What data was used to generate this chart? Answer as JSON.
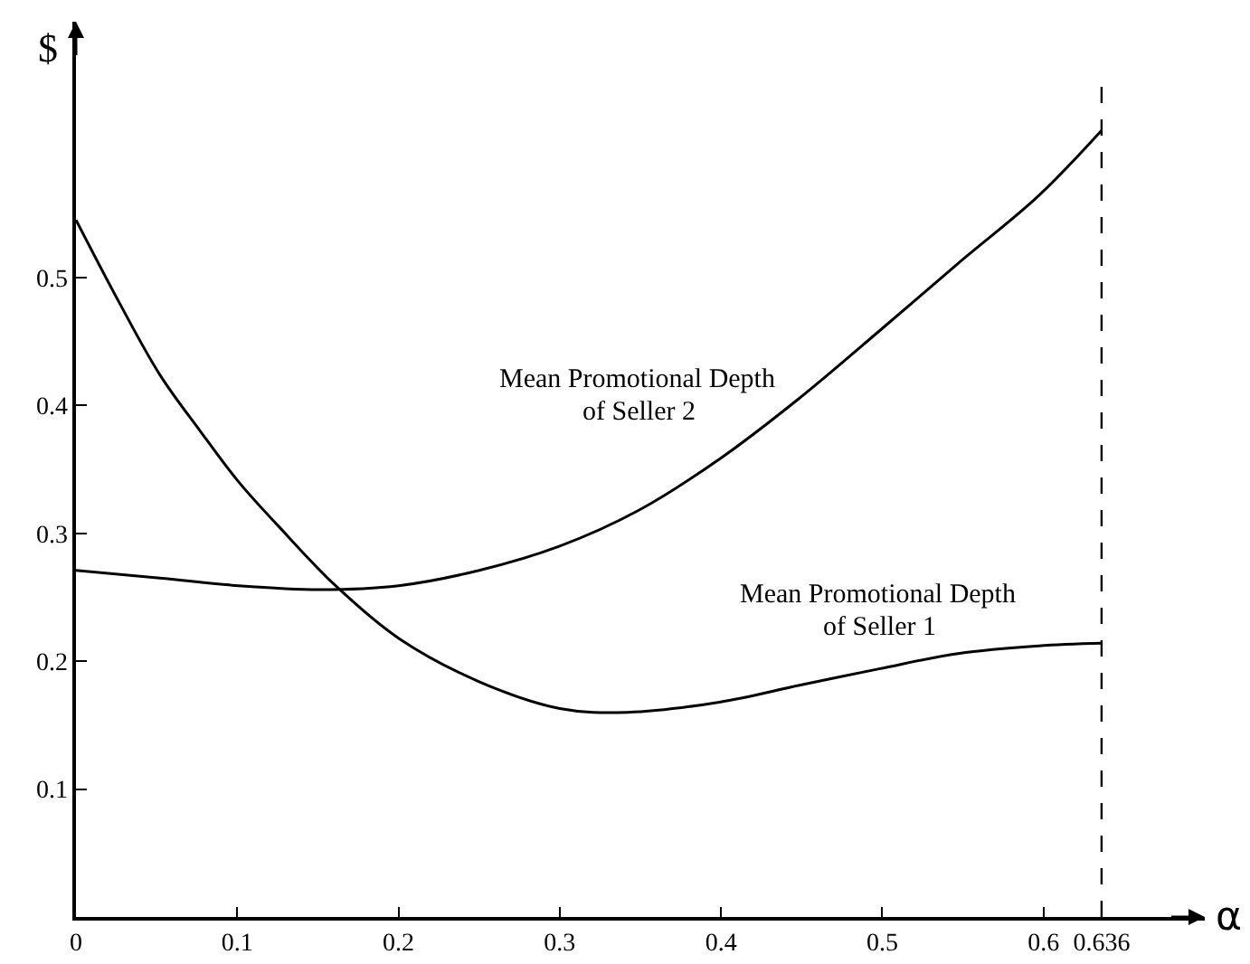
{
  "chart_data": {
    "type": "line",
    "xlabel": "α",
    "ylabel": "$",
    "xlim": [
      0,
      0.7
    ],
    "ylim": [
      0,
      0.7
    ],
    "xticks": [
      0,
      0.1,
      0.2,
      0.3,
      0.4,
      0.5,
      0.6,
      0.636
    ],
    "yticks": [
      0.1,
      0.2,
      0.3,
      0.4,
      0.5
    ],
    "grid": false,
    "legend": false,
    "line_style": "solid",
    "marker": "none",
    "ref_lines": [
      {
        "axis": "x",
        "value": 0.636,
        "line_style": "dashed",
        "color": "#000000"
      }
    ],
    "series": [
      {
        "name": "Mean Promotional Depth of Seller 1",
        "color": "#000000",
        "x": [
          0,
          0.027,
          0.052,
          0.077,
          0.101,
          0.126,
          0.161,
          0.2,
          0.25,
          0.3,
          0.342,
          0.399,
          0.448,
          0.498,
          0.547,
          0.597,
          0.636
        ],
        "values": [
          0.545,
          0.48,
          0.424,
          0.38,
          0.34,
          0.305,
          0.259,
          0.218,
          0.184,
          0.163,
          0.16,
          0.168,
          0.181,
          0.194,
          0.206,
          0.212,
          0.214
        ]
      },
      {
        "name": "Mean Promotional Depth of Seller 2",
        "color": "#000000",
        "x": [
          0,
          0.052,
          0.101,
          0.151,
          0.2,
          0.25,
          0.3,
          0.349,
          0.399,
          0.448,
          0.498,
          0.547,
          0.597,
          0.636
        ],
        "values": [
          0.271,
          0.265,
          0.259,
          0.256,
          0.259,
          0.271,
          0.29,
          0.318,
          0.358,
          0.405,
          0.458,
          0.511,
          0.564,
          0.615
        ]
      }
    ]
  }
}
